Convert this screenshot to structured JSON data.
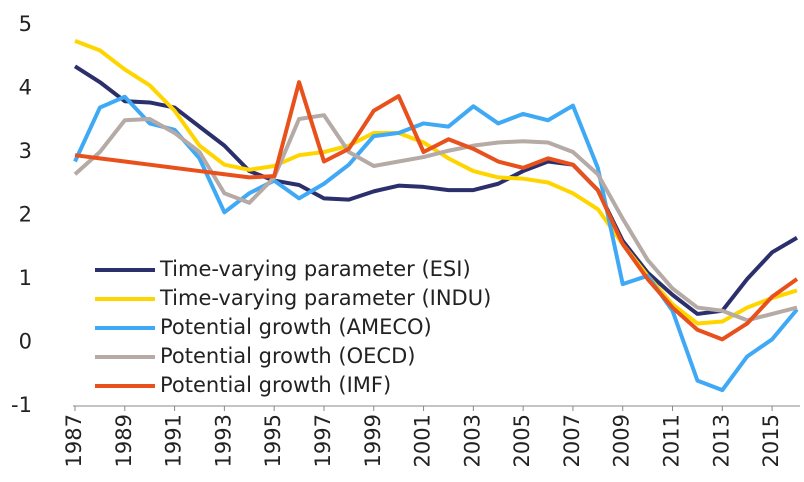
{
  "chart_data": {
    "type": "line",
    "x": [
      1987,
      1988,
      1989,
      1990,
      1991,
      1992,
      1993,
      1994,
      1995,
      1996,
      1997,
      1998,
      1999,
      2000,
      2001,
      2002,
      2003,
      2004,
      2005,
      2006,
      2007,
      2008,
      2009,
      2010,
      2011,
      2012,
      2013,
      2014,
      2015,
      2016
    ],
    "xlim": [
      1987,
      2016
    ],
    "xticks": [
      1987,
      1989,
      1991,
      1993,
      1995,
      1997,
      1999,
      2001,
      2003,
      2005,
      2007,
      2009,
      2011,
      2013,
      2015
    ],
    "ylim": [
      -1,
      5
    ],
    "yticks": [
      -1,
      0,
      1,
      2,
      3,
      4,
      5
    ],
    "legend": "lower left",
    "series": [
      {
        "name": "Time-varying parameter (ESI)",
        "color": "#2b2f6b",
        "values": [
          4.35,
          4.1,
          3.8,
          3.78,
          3.7,
          3.4,
          3.1,
          2.7,
          2.55,
          2.48,
          2.27,
          2.25,
          2.38,
          2.47,
          2.45,
          2.4,
          2.4,
          2.5,
          2.7,
          2.85,
          2.8,
          2.4,
          1.6,
          1.1,
          0.75,
          0.45,
          0.5,
          1.0,
          1.42,
          1.65
        ]
      },
      {
        "name": "Time-varying parameter (INDU)",
        "color": "#ffd500",
        "values": [
          4.75,
          4.6,
          4.3,
          4.05,
          3.65,
          3.1,
          2.8,
          2.72,
          2.78,
          2.95,
          3.0,
          3.1,
          3.3,
          3.3,
          3.15,
          2.9,
          2.7,
          2.6,
          2.58,
          2.52,
          2.35,
          2.1,
          1.55,
          1.05,
          0.6,
          0.3,
          0.33,
          0.55,
          0.7,
          0.82
        ]
      },
      {
        "name": "Potential growth (AMECO)",
        "color": "#3fa9f5",
        "values": [
          2.85,
          3.7,
          3.87,
          3.45,
          3.35,
          2.9,
          2.05,
          2.35,
          2.55,
          2.27,
          2.5,
          2.8,
          3.25,
          3.3,
          3.45,
          3.4,
          3.72,
          3.45,
          3.6,
          3.5,
          3.73,
          2.75,
          0.92,
          1.05,
          0.5,
          -0.6,
          -0.75,
          -0.22,
          0.05,
          0.52
        ]
      },
      {
        "name": "Potential growth (OECD)",
        "color": "#b5aaa5",
        "values": [
          2.65,
          3.0,
          3.5,
          3.52,
          3.3,
          3.0,
          2.35,
          2.2,
          2.6,
          3.52,
          3.58,
          3.0,
          2.78,
          2.85,
          2.92,
          3.02,
          3.1,
          3.15,
          3.17,
          3.15,
          3.0,
          2.65,
          1.95,
          1.3,
          0.85,
          0.55,
          0.5,
          0.35,
          0.45,
          0.55
        ]
      },
      {
        "name": "Potential growth (IMF)",
        "color": "#e8501c",
        "values": [
          2.95,
          2.9,
          2.85,
          2.8,
          2.75,
          2.7,
          2.65,
          2.6,
          2.62,
          4.1,
          2.85,
          3.05,
          3.65,
          3.88,
          3.0,
          3.2,
          3.05,
          2.85,
          2.75,
          2.9,
          2.8,
          2.4,
          1.55,
          1.0,
          0.55,
          0.2,
          0.05,
          0.3,
          0.72,
          1.0
        ]
      }
    ]
  }
}
